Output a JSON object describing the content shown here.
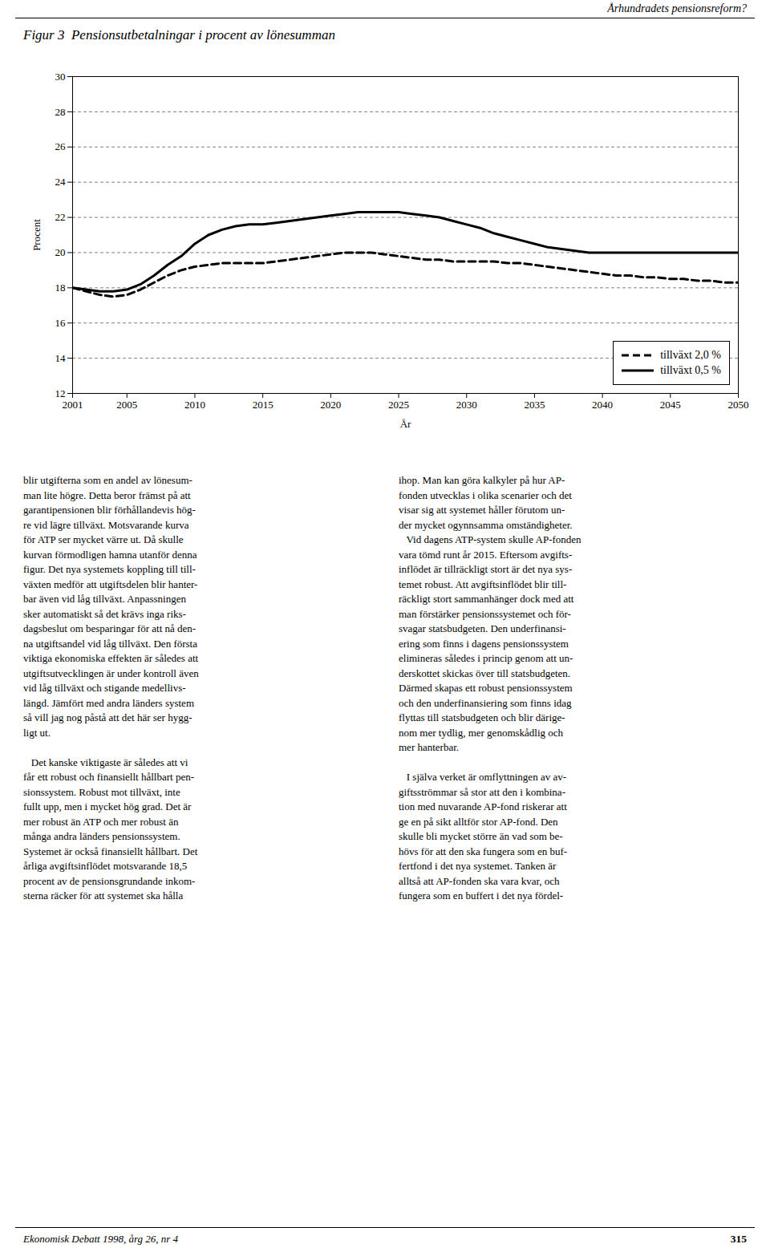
{
  "chart_data": {
    "type": "line",
    "title": "Figur 3  Pensionsutbetalningar i procent av lönesumman",
    "header": "Århundradets pensionsreform?",
    "x_label": "År",
    "y_label": "Procent",
    "x": [
      2001,
      2002,
      2003,
      2004,
      2005,
      2006,
      2007,
      2008,
      2009,
      2010,
      2011,
      2012,
      2013,
      2014,
      2015,
      2016,
      2017,
      2018,
      2019,
      2020,
      2021,
      2022,
      2023,
      2024,
      2025,
      2026,
      2027,
      2028,
      2029,
      2030,
      2031,
      2032,
      2033,
      2034,
      2035,
      2036,
      2037,
      2038,
      2039,
      2040,
      2041,
      2042,
      2043,
      2044,
      2045,
      2046,
      2047,
      2048,
      2049,
      2050
    ],
    "series": [
      {
        "name": "tillväxt 2,0 %",
        "color": "#000000",
        "line_style": "dashed",
        "values": [
          18.0,
          17.8,
          17.6,
          17.5,
          17.6,
          17.9,
          18.3,
          18.7,
          19.0,
          19.2,
          19.3,
          19.4,
          19.4,
          19.4,
          19.4,
          19.5,
          19.6,
          19.7,
          19.8,
          19.9,
          20.0,
          20.0,
          20.0,
          19.9,
          19.8,
          19.7,
          19.6,
          19.6,
          19.5,
          19.5,
          19.5,
          19.5,
          19.4,
          19.4,
          19.3,
          19.2,
          19.1,
          19.0,
          18.9,
          18.8,
          18.7,
          18.7,
          18.6,
          18.6,
          18.5,
          18.5,
          18.4,
          18.4,
          18.3,
          18.3
        ]
      },
      {
        "name": "tillväxt 0,5 %",
        "color": "#000000",
        "line_style": "solid",
        "values": [
          18.0,
          17.9,
          17.8,
          17.8,
          17.9,
          18.2,
          18.7,
          19.3,
          19.8,
          20.5,
          21.0,
          21.3,
          21.5,
          21.6,
          21.6,
          21.7,
          21.8,
          21.9,
          22.0,
          22.1,
          22.2,
          22.3,
          22.3,
          22.3,
          22.3,
          22.2,
          22.1,
          22.0,
          21.8,
          21.6,
          21.4,
          21.1,
          20.9,
          20.7,
          20.5,
          20.3,
          20.2,
          20.1,
          20.0,
          20.0,
          20.0,
          20.0,
          20.0,
          20.0,
          20.0,
          20.0,
          20.0,
          20.0,
          20.0,
          20.0
        ]
      }
    ],
    "xlim": [
      2001,
      2050
    ],
    "xticks": [
      2001,
      2005,
      2010,
      2015,
      2020,
      2025,
      2030,
      2035,
      2040,
      2045,
      2050
    ],
    "ylim": [
      12,
      30
    ],
    "yticks": [
      12,
      14,
      16,
      18,
      20,
      22,
      24,
      26,
      28,
      30
    ],
    "grid": true,
    "legend": "lower right",
    "columns": [
      [
        [
          "blir utgifterna som en andel av lönesum-",
          "man lite högre. Detta beror främst på att",
          "garantipensionen blir förhållandevis hög-",
          "re vid lägre tillväxt. Motsvarande kurva",
          "för ATP ser mycket värre ut. Då skulle",
          "kurvan förmodligen hamna utanför denna",
          "figur. Det nya systemets koppling till till-",
          "växten medför att utgiftsdelen blir hanter-",
          "bar även vid låg tillväxt. Anpassningen",
          "sker automatiskt så det krävs inga riks-",
          "dagsbeslut om besparingar för att nå den-",
          "na utgiftsandel vid låg tillväxt. Den första",
          "viktiga ekonomiska effekten är således att",
          "utgiftsutvecklingen är under kontroll även",
          "vid låg tillväxt och stigande medellivs-",
          "längd. Jämfört med andra länders system",
          "så vill jag nog påstå att det här ser hygg-",
          "ligt ut."
        ],
        [
          "   Det kanske viktigaste är således att vi",
          "får ett robust och finansiellt hållbart pen-",
          "sionssystem. Robust mot tillväxt, inte",
          "fullt upp, men i mycket hög grad. Det är",
          "mer robust än ATP och mer robust än",
          "många andra länders pensionssystem.",
          "Systemet är också finansiellt hållbart. Det",
          "årliga avgiftsinflödet motsvarande 18,5",
          "procent av de pensionsgrundande inkom-",
          "sterna räcker för att systemet ska hålla"
        ]
      ],
      [
        [
          "ihop. Man kan göra kalkyler på hur AP-",
          "fonden utvecklas i olika scenarier och det",
          "visar sig att systemet håller förutom un-",
          "der mycket ogynnsamma omständigheter.",
          "   Vid dagens ATP-system skulle AP-fonden",
          "vara tömd runt år 2015. Eftersom avgifts-",
          "inflödet är tillräckligt stort är det nya sys-",
          "temet robust. Att avgiftsinflödet blir till-",
          "räckligt stort sammanhänger dock med att",
          "man förstärker pensionssystemet och för-",
          "svagar statsbudgeten. Den underfinansi-",
          "ering som finns i dagens pensionssystem",
          "elimineras således i princip genom att un-",
          "derskottet skickas över till statsbudgeten.",
          "Därmed skapas ett robust pensionssystem",
          "och den underfinansiering som finns idag",
          "flyttas till statsbudgeten och blir därige-",
          "nom mer tydlig, mer genomskådlig och",
          "mer hanterbar."
        ],
        [
          "   I själva verket är omflyttningen av av-",
          "giftsströmmar så stor att den i kombina-",
          "tion med nuvarande AP-fond riskerar att",
          "ge en på sikt alltför stor AP-fond. Den",
          "skulle bli mycket större än vad som be-",
          "hövs för att den ska fungera som en buf-",
          "fertfond i det nya systemet. Tanken är",
          "alltså att AP-fonden ska vara kvar, och",
          "fungera som en buffert i det nya fördel-"
        ]
      ]
    ],
    "footer_left": "Ekonomisk Debatt 1998, årg 26, nr 4",
    "footer_right": "315"
  }
}
